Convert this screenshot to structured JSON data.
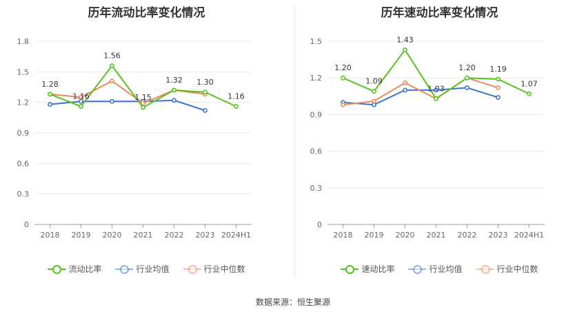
{
  "charts": [
    {
      "title": "历年流动比率变化情况",
      "chart_data": {
        "type": "line",
        "categories": [
          "2018",
          "2019",
          "2020",
          "2021",
          "2022",
          "2023",
          "2024H1"
        ],
        "y_ticks": [
          "0",
          "0.3",
          "0.6",
          "0.9",
          "1.2",
          "1.5",
          "1.8"
        ],
        "ylim": [
          0,
          1.8
        ],
        "grid": true,
        "legend": "bottom",
        "series": [
          {
            "name": "流动比率",
            "color": "#52c41a",
            "values": [
              1.28,
              1.16,
              1.56,
              1.15,
              1.32,
              1.3,
              1.16
            ],
            "labels": [
              "1.28",
              "1.16",
              "1.56",
              "1.15",
              "1.32",
              "1.30",
              "1.16"
            ]
          },
          {
            "name": "行业均值",
            "color": "#3a72d8",
            "values": [
              1.18,
              1.21,
              1.21,
              1.21,
              1.22,
              1.12,
              null
            ]
          },
          {
            "name": "行业中位数",
            "color": "#f0885a",
            "values": [
              1.28,
              1.25,
              1.41,
              1.19,
              1.32,
              1.28,
              null
            ]
          }
        ]
      }
    },
    {
      "title": "历年速动比率变化情况",
      "chart_data": {
        "type": "line",
        "categories": [
          "2018",
          "2019",
          "2020",
          "2021",
          "2022",
          "2023",
          "2024H1"
        ],
        "y_ticks": [
          "0",
          "0.3",
          "0.6",
          "0.9",
          "1.2",
          "1.5"
        ],
        "ylim": [
          0,
          1.5
        ],
        "grid": true,
        "legend": "bottom",
        "series": [
          {
            "name": "速动比率",
            "color": "#52c41a",
            "values": [
              1.2,
              1.09,
              1.43,
              1.03,
              1.2,
              1.19,
              1.07
            ],
            "labels": [
              "1.20",
              "1.09",
              "1.43",
              "1.03",
              "1.20",
              "1.19",
              "1.07"
            ]
          },
          {
            "name": "行业均值",
            "color": "#3a72d8",
            "values": [
              1.0,
              0.98,
              1.1,
              1.1,
              1.12,
              1.04,
              null
            ]
          },
          {
            "name": "行业中位数",
            "color": "#f0885a",
            "values": [
              0.98,
              1.01,
              1.16,
              1.03,
              1.2,
              1.12,
              null
            ]
          }
        ]
      }
    }
  ],
  "source": "数据来源：恒生聚源"
}
